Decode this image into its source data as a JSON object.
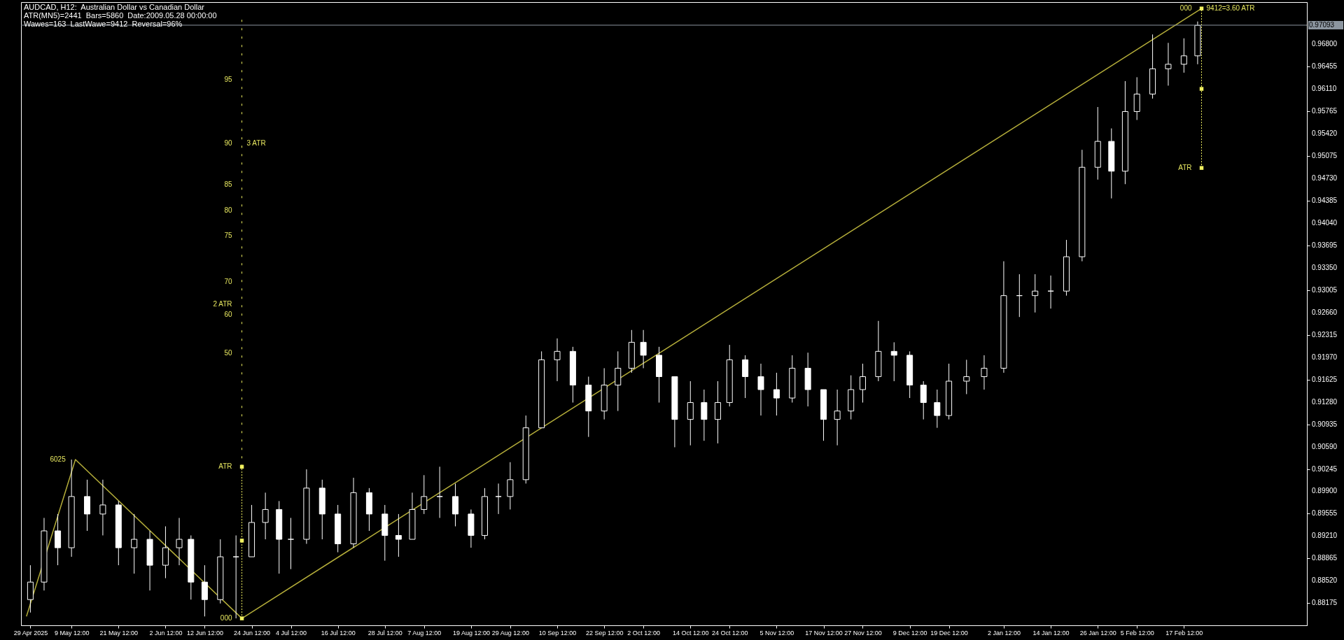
{
  "chart_data": {
    "type": "candlestick",
    "title": "AUDCAD, H12:  Australian Dollar vs Canadian Dollar",
    "subtitle": "ATR(MN5)=2441  Bars=5860  Date:2009.05.28 00:00:00",
    "color": "#ffffff",
    "x": [
      "2025-04-29T00:00",
      "2025-05-02T12:00",
      "2025-05-06T00:00",
      "2025-05-09T12:00",
      "2025-05-13T12:00",
      "2025-05-17T12:00",
      "2025-05-21T12:00",
      "2025-05-25T12:00",
      "2025-05-29T12:00",
      "2025-06-02T12:00",
      "2025-06-06T00:00",
      "2025-06-09T00:00",
      "2025-06-12T12:00",
      "2025-06-16T12:00",
      "2025-06-20T12:00",
      "2025-06-24T12:00",
      "2025-06-28T00:00",
      "2025-07-01T12:00",
      "2025-07-04T12:00",
      "2025-07-08T12:00",
      "2025-07-12T12:00",
      "2025-07-16T12:00",
      "2025-07-20T12:00",
      "2025-07-24T12:00",
      "2025-07-28T12:00",
      "2025-08-01T00:00",
      "2025-08-04T12:00",
      "2025-08-07T12:00",
      "2025-08-11T12:00",
      "2025-08-15T12:00",
      "2025-08-19T12:00",
      "2025-08-23T00:00",
      "2025-08-26T12:00",
      "2025-08-29T12:00",
      "2025-09-02T12:00",
      "2025-09-06T12:00",
      "2025-09-10T12:00",
      "2025-09-14T12:00",
      "2025-09-18T12:00",
      "2025-09-22T12:00",
      "2025-09-26T00:00",
      "2025-09-29T12:00",
      "2025-10-02T12:00",
      "2025-10-06T12:00",
      "2025-10-10T12:00",
      "2025-10-14T12:00",
      "2025-10-18T00:00",
      "2025-10-21T12:00",
      "2025-10-24T12:00",
      "2025-10-28T12:00",
      "2025-11-01T12:00",
      "2025-11-05T12:00",
      "2025-11-09T12:00",
      "2025-11-13T12:00",
      "2025-11-17T12:00",
      "2025-11-21T00:00",
      "2025-11-24T12:00",
      "2025-11-27T12:00",
      "2025-12-01T12:00",
      "2025-12-05T12:00",
      "2025-12-09T12:00",
      "2025-12-13T00:00",
      "2025-12-16T12:00",
      "2025-12-19T12:00",
      "2025-12-24T00:00",
      "2025-12-28T12:00",
      "2026-01-02T12:00",
      "2026-01-06T12:00",
      "2026-01-10T12:00",
      "2026-01-14T12:00",
      "2026-01-18T12:00",
      "2026-01-22T12:00",
      "2026-01-26T12:00",
      "2026-01-30T00:00",
      "2026-02-02T12:00",
      "2026-02-05T12:00",
      "2026-02-09T12:00",
      "2026-02-13T12:00",
      "2026-02-17T12:00",
      "2026-02-21T00:00"
    ],
    "ohlc": [
      [
        0.8823,
        0.8876,
        0.8803,
        0.885
      ],
      [
        0.885,
        0.8949,
        0.8837,
        0.8929
      ],
      [
        0.8929,
        0.8955,
        0.8876,
        0.8903
      ],
      [
        0.8903,
        0.9039,
        0.8889,
        0.8982
      ],
      [
        0.8982,
        0.9008,
        0.8929,
        0.8955
      ],
      [
        0.8955,
        0.9008,
        0.8922,
        0.8969
      ],
      [
        0.8969,
        0.8975,
        0.8876,
        0.8903
      ],
      [
        0.8903,
        0.8955,
        0.8863,
        0.8916
      ],
      [
        0.8916,
        0.8929,
        0.8837,
        0.8876
      ],
      [
        0.8876,
        0.8936,
        0.8856,
        0.8903
      ],
      [
        0.8903,
        0.8949,
        0.8876,
        0.8916
      ],
      [
        0.8916,
        0.8922,
        0.8823,
        0.885
      ],
      [
        0.885,
        0.8876,
        0.8797,
        0.8823
      ],
      [
        0.8823,
        0.8916,
        0.8817,
        0.8889
      ],
      [
        0.8889,
        0.8922,
        0.8794,
        0.8889
      ],
      [
        0.8889,
        0.8969,
        0.8889,
        0.8942
      ],
      [
        0.8942,
        0.8988,
        0.8916,
        0.8962
      ],
      [
        0.8962,
        0.8975,
        0.8863,
        0.8916
      ],
      [
        0.8916,
        0.8949,
        0.887,
        0.8916
      ],
      [
        0.8916,
        0.9024,
        0.8909,
        0.8995
      ],
      [
        0.8995,
        0.9008,
        0.8916,
        0.8955
      ],
      [
        0.8955,
        0.8969,
        0.8896,
        0.8909
      ],
      [
        0.8909,
        0.9011,
        0.8903,
        0.8988
      ],
      [
        0.8988,
        0.8995,
        0.8929,
        0.8955
      ],
      [
        0.8955,
        0.8969,
        0.8883,
        0.8922
      ],
      [
        0.8922,
        0.8955,
        0.8889,
        0.8916
      ],
      [
        0.8916,
        0.8988,
        0.8916,
        0.8962
      ],
      [
        0.8962,
        0.9015,
        0.8955,
        0.8982
      ],
      [
        0.8982,
        0.9028,
        0.8949,
        0.8982
      ],
      [
        0.8982,
        0.9002,
        0.8936,
        0.8955
      ],
      [
        0.8955,
        0.8962,
        0.8903,
        0.8922
      ],
      [
        0.8922,
        0.8995,
        0.8916,
        0.8982
      ],
      [
        0.8982,
        0.9002,
        0.8955,
        0.8982
      ],
      [
        0.8982,
        0.9035,
        0.8962,
        0.9008
      ],
      [
        0.9008,
        0.9107,
        0.9002,
        0.9088
      ],
      [
        0.9088,
        0.9206,
        0.9088,
        0.9193
      ],
      [
        0.9193,
        0.9226,
        0.916,
        0.9206
      ],
      [
        0.9206,
        0.9213,
        0.9127,
        0.9154
      ],
      [
        0.9154,
        0.9167,
        0.9074,
        0.9114
      ],
      [
        0.9114,
        0.918,
        0.9101,
        0.9154
      ],
      [
        0.9154,
        0.9206,
        0.9114,
        0.918
      ],
      [
        0.918,
        0.9239,
        0.9173,
        0.922
      ],
      [
        0.922,
        0.9239,
        0.918,
        0.92
      ],
      [
        0.92,
        0.9213,
        0.9127,
        0.9167
      ],
      [
        0.9167,
        0.9167,
        0.9058,
        0.9101
      ],
      [
        0.9101,
        0.916,
        0.9061,
        0.9127
      ],
      [
        0.9127,
        0.9147,
        0.9068,
        0.9101
      ],
      [
        0.9101,
        0.916,
        0.9064,
        0.9127
      ],
      [
        0.9127,
        0.9216,
        0.9121,
        0.9193
      ],
      [
        0.9193,
        0.92,
        0.9134,
        0.9167
      ],
      [
        0.9167,
        0.9187,
        0.9107,
        0.9147
      ],
      [
        0.9147,
        0.9173,
        0.9107,
        0.9134
      ],
      [
        0.9134,
        0.92,
        0.9127,
        0.918
      ],
      [
        0.918,
        0.9204,
        0.9121,
        0.9147
      ],
      [
        0.9147,
        0.9147,
        0.9068,
        0.9101
      ],
      [
        0.9101,
        0.9147,
        0.9061,
        0.9114
      ],
      [
        0.9114,
        0.9169,
        0.9101,
        0.9147
      ],
      [
        0.9147,
        0.9187,
        0.9127,
        0.9167
      ],
      [
        0.9167,
        0.9253,
        0.916,
        0.9206
      ],
      [
        0.9206,
        0.922,
        0.916,
        0.92
      ],
      [
        0.92,
        0.9206,
        0.9134,
        0.9154
      ],
      [
        0.9154,
        0.916,
        0.9101,
        0.9127
      ],
      [
        0.9127,
        0.9147,
        0.9088,
        0.9107
      ],
      [
        0.9107,
        0.9187,
        0.9101,
        0.916
      ],
      [
        0.916,
        0.9193,
        0.914,
        0.9167
      ],
      [
        0.9167,
        0.92,
        0.9147,
        0.918
      ],
      [
        0.918,
        0.9345,
        0.9173,
        0.9292
      ],
      [
        0.9292,
        0.9325,
        0.9259,
        0.9292
      ],
      [
        0.9292,
        0.9325,
        0.9266,
        0.9299
      ],
      [
        0.9299,
        0.9323,
        0.9272,
        0.9299
      ],
      [
        0.9299,
        0.9378,
        0.9292,
        0.9352
      ],
      [
        0.9352,
        0.9517,
        0.9345,
        0.949
      ],
      [
        0.949,
        0.9583,
        0.9471,
        0.953
      ],
      [
        0.953,
        0.955,
        0.9442,
        0.9484
      ],
      [
        0.9484,
        0.9623,
        0.9464,
        0.9576
      ],
      [
        0.9576,
        0.9629,
        0.9563,
        0.9603
      ],
      [
        0.9603,
        0.9695,
        0.9596,
        0.9642
      ],
      [
        0.9642,
        0.9682,
        0.9616,
        0.9649
      ],
      [
        0.9649,
        0.9689,
        0.9636,
        0.9662
      ],
      [
        0.9662,
        0.9715,
        0.9649,
        0.9709
      ]
    ],
    "series": [
      {
        "type": "line",
        "color": "#b5ae3a",
        "x": [
          "2025-04-28T00:00",
          "2025-05-10T12:00",
          "2025-06-22T00:00",
          "2026-02-22T00:00"
        ],
        "values": [
          0.8797,
          0.9039,
          0.8794,
          0.9735
        ],
        "line_style": "solid",
        "marker": "none"
      },
      {
        "type": "line",
        "color": "#f0f060",
        "x": [
          "2025-06-22T00:00",
          "2025-06-22T00:00",
          "2025-06-22T00:00"
        ],
        "values": [
          0.8794,
          0.8914,
          0.9028
        ],
        "line_style": "dotted",
        "marker": "square"
      },
      {
        "type": "line",
        "color": "#f0f060",
        "x": [
          "2025-06-22T00:00",
          "2025-06-22T00:00"
        ],
        "values": [
          0.9028,
          0.9718
        ],
        "line_style": "dashed",
        "marker": "none"
      },
      {
        "type": "line",
        "color": "#f0f060",
        "x": [
          "2026-02-22T00:00",
          "2026-02-22T00:00",
          "2026-02-22T00:00"
        ],
        "values": [
          0.9489,
          0.9611,
          0.9735
        ],
        "line_style": "dotted",
        "marker": "square"
      }
    ],
    "xlim": [
      "2025-04-27T12:00",
      "2026-03-20T00:00"
    ],
    "xticks": [
      {
        "value": "2025-04-29T00:00",
        "label": "29 Apr 2025"
      },
      {
        "value": "2025-05-09T12:00",
        "label": "9 May 12:00"
      },
      {
        "value": "2025-05-21T12:00",
        "label": "21 May 12:00"
      },
      {
        "value": "2025-06-02T12:00",
        "label": "2 Jun 12:00"
      },
      {
        "value": "2025-06-12T12:00",
        "label": "12 Jun 12:00"
      },
      {
        "value": "2025-06-24T12:00",
        "label": "24 Jun 12:00"
      },
      {
        "value": "2025-07-04T12:00",
        "label": "4 Jul 12:00"
      },
      {
        "value": "2025-07-16T12:00",
        "label": "16 Jul 12:00"
      },
      {
        "value": "2025-07-28T12:00",
        "label": "28 Jul 12:00"
      },
      {
        "value": "2025-08-07T12:00",
        "label": "7 Aug 12:00"
      },
      {
        "value": "2025-08-19T12:00",
        "label": "19 Aug 12:00"
      },
      {
        "value": "2025-08-29T12:00",
        "label": "29 Aug 12:00"
      },
      {
        "value": "2025-09-10T12:00",
        "label": "10 Sep 12:00"
      },
      {
        "value": "2025-09-22T12:00",
        "label": "22 Sep 12:00"
      },
      {
        "value": "2025-10-02T12:00",
        "label": "2 Oct 12:00"
      },
      {
        "value": "2025-10-14T12:00",
        "label": "14 Oct 12:00"
      },
      {
        "value": "2025-10-24T12:00",
        "label": "24 Oct 12:00"
      },
      {
        "value": "2025-11-05T12:00",
        "label": "5 Nov 12:00"
      },
      {
        "value": "2025-11-17T12:00",
        "label": "17 Nov 12:00"
      },
      {
        "value": "2025-11-27T12:00",
        "label": "27 Nov 12:00"
      },
      {
        "value": "2025-12-09T12:00",
        "label": "9 Dec 12:00"
      },
      {
        "value": "2025-12-19T12:00",
        "label": "19 Dec 12:00"
      },
      {
        "value": "2026-01-02T12:00",
        "label": "2 Jan 12:00"
      },
      {
        "value": "2026-01-14T12:00",
        "label": "14 Jan 12:00"
      },
      {
        "value": "2026-01-26T12:00",
        "label": "26 Jan 12:00"
      },
      {
        "value": "2026-02-05T12:00",
        "label": "5 Feb 12:00"
      },
      {
        "value": "2026-02-17T12:00",
        "label": "17 Feb 12:00"
      }
    ],
    "ylim": [
      0.87833,
      0.97449
    ],
    "yticks": [
      0.88175,
      {
        "value": 0.8852,
        "label": "0.88520"
      },
      0.88865,
      {
        "value": 0.8921,
        "label": "0.89210"
      },
      0.89555,
      {
        "value": 0.899,
        "label": "0.89900"
      },
      0.90245,
      {
        "value": 0.9059,
        "label": "0.90590"
      },
      0.90935,
      {
        "value": 0.9128,
        "label": "0.91280"
      },
      0.91625,
      {
        "value": 0.9197,
        "label": "0.91970"
      },
      0.92315,
      {
        "value": 0.9266,
        "label": "0.92660"
      },
      0.93005,
      {
        "value": 0.9335,
        "label": "0.93350"
      },
      0.93695,
      {
        "value": 0.9404,
        "label": "0.94040"
      },
      0.94385,
      {
        "value": 0.9473,
        "label": "0.94730"
      },
      0.95075,
      {
        "value": 0.9542,
        "label": "0.95420"
      },
      0.95765,
      {
        "value": 0.9611,
        "label": "0.96110"
      },
      0.96455,
      {
        "value": 0.968,
        "label": "0.96800"
      }
    ],
    "ref_lines": [
      {
        "axis": "y",
        "value": 0.97093,
        "label": "0.97093",
        "color": "#8c96a0"
      }
    ],
    "annotations": [
      "Wawes=163  LastWawe=9412  Reversal=96%",
      {
        "text": "6025",
        "x": "2025-05-10T12:00",
        "y": 0.9039
      },
      {
        "text": "000",
        "x": "2025-06-22T00:00",
        "y": 0.8794
      },
      {
        "text": "ATR",
        "x": "2025-06-22T00:00",
        "y": 0.9028
      },
      {
        "text": "50",
        "x": "2025-06-22T00:00",
        "y": 0.9203
      },
      {
        "text": "60",
        "x": "2025-06-22T00:00",
        "y": 0.9262
      },
      {
        "text": "2 ATR",
        "x": "2025-06-22T00:00",
        "y": 0.9279
      },
      {
        "text": "70",
        "x": "2025-06-22T00:00",
        "y": 0.9313
      },
      {
        "text": "75",
        "x": "2025-06-22T00:00",
        "y": 0.9384
      },
      {
        "text": "80",
        "x": "2025-06-22T00:00",
        "y": 0.9423
      },
      {
        "text": "85",
        "x": "2025-06-22T00:00",
        "y": 0.9463
      },
      {
        "text": "90",
        "x": "2025-06-22T00:00",
        "y": 0.9527
      },
      {
        "text": "3 ATR",
        "x": "2025-06-22T00:00",
        "y": 0.9527
      },
      {
        "text": "95",
        "x": "2025-06-22T00:00",
        "y": 0.9625
      },
      {
        "text": "ATR",
        "x": "2026-02-22T00:00",
        "y": 0.9489
      },
      {
        "text": "000",
        "x": "2026-02-22T00:00",
        "y": 0.9735
      },
      {
        "text": "9412=3.60 ATR",
        "x": "2026-02-22T00:00",
        "y": 0.9735
      }
    ]
  }
}
